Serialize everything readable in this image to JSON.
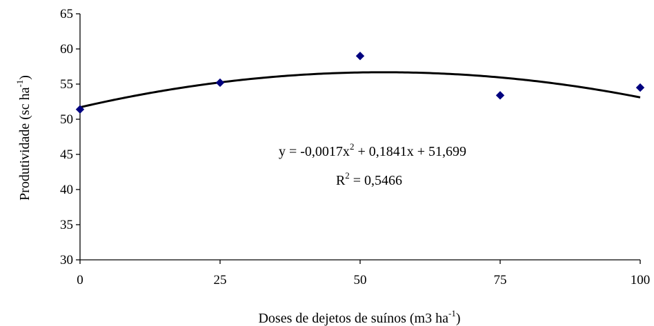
{
  "chart_data": {
    "type": "scatter",
    "xlabel": "Doses de dejetos de suínos (m3 ha",
    "xlabel_sup": "-1",
    "xlabel_end": ")",
    "ylabel": "Produtividade (sc ha",
    "ylabel_sup": "-1",
    "ylabel_end": ")",
    "xlim": [
      0,
      100
    ],
    "ylim": [
      30,
      65
    ],
    "x_ticks": [
      "0",
      "25",
      "50",
      "75",
      "100"
    ],
    "y_ticks": [
      "30",
      "35",
      "40",
      "45",
      "50",
      "55",
      "60",
      "65"
    ],
    "grid": false,
    "legend": "none",
    "series": [
      {
        "marker": "diamond",
        "color": "#00007f",
        "points": [
          {
            "x": 0,
            "y": 51.4
          },
          {
            "x": 25,
            "y": 55.2
          },
          {
            "x": 50,
            "y": 59.0
          },
          {
            "x": 75,
            "y": 53.4
          },
          {
            "x": 100,
            "y": 54.5
          }
        ]
      }
    ],
    "trendline": {
      "type": "polynomial",
      "coefficients": {
        "a": -0.0017,
        "b": 0.1841,
        "c": 51.699
      },
      "color": "#000000",
      "equation_prefix": "y = -0,0017x",
      "equation_sup": "2",
      "equation_suffix": " + 0,1841x + 51,699",
      "r2_prefix": "R",
      "r2_sup": "2",
      "r2_suffix": " = 0,5466"
    }
  }
}
